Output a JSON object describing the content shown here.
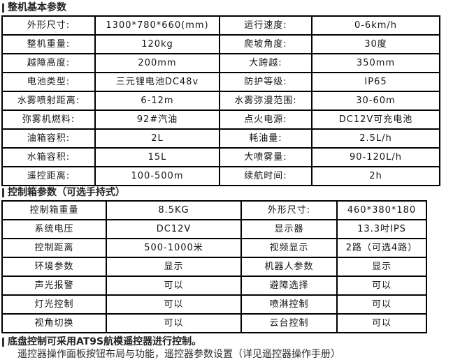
{
  "page": {
    "background_color": "#ffffff",
    "table_border_color": "#000000",
    "text_color": "#141414"
  },
  "sections": [
    {
      "title": "整机基本参数",
      "table": {
        "rows": [
          [
            "外形尺寸:",
            "1300*780*660(mm)",
            "运行速度:",
            "0-6km/h"
          ],
          [
            "整机重量:",
            "120kg",
            "爬坡角度:",
            "30度"
          ],
          [
            "越障高度:",
            "200mm",
            "大跨越:",
            "350mm"
          ],
          [
            "电池类型:",
            "三元锂电池DC48v",
            "防护等级:",
            "IP65"
          ],
          [
            "水雾喷射距离:",
            "6-12m",
            "水雾弥漫范围:",
            "30-60m"
          ],
          [
            "弥雾机燃料:",
            "92#汽油",
            "点火电源:",
            "DC12V可充电池"
          ],
          [
            "油箱容积:",
            "2L",
            "耗油量:",
            "2.5L/h"
          ],
          [
            "水箱容积:",
            "15L",
            "大喷雾量:",
            "90-120L/h"
          ],
          [
            "遥控距离:",
            "100-500m",
            "续航时间:",
            "2h"
          ]
        ]
      }
    },
    {
      "title": "控制箱参数（可选手持式）",
      "table": {
        "rows": [
          [
            "控制箱重量",
            "8.5KG",
            "外形尺寸:",
            "460*380*180"
          ],
          [
            "系统电压",
            "DC12V",
            "显示器",
            "13.3吋IPS"
          ],
          [
            "控制距离",
            "500-1000米",
            "视频显示",
            "2路（可选4路）"
          ],
          [
            "环境参数",
            "显示",
            "机器人参数",
            "显示"
          ],
          [
            "声光报警",
            "可以",
            "避障选择",
            "可以"
          ],
          [
            "灯光控制",
            "可以",
            "喷淋控制",
            "可以"
          ],
          [
            "视角切换",
            "可以",
            "云台控制",
            "可以"
          ]
        ]
      }
    }
  ],
  "footer": {
    "line1": "底盘控制可采用AT9S航模遥控器进行控制。",
    "line2": "遥控器操作面板按钮布局与功能，遥控器参数设置（详见遥控器操作手册）"
  }
}
